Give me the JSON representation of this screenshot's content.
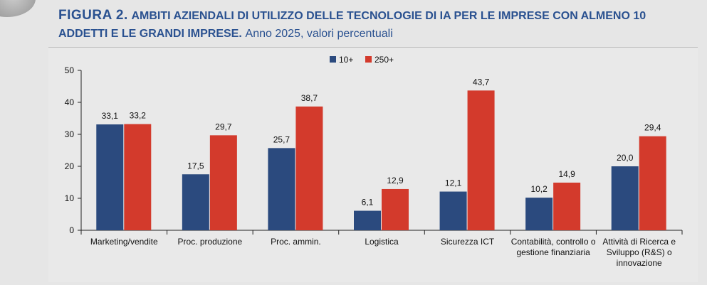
{
  "figure": {
    "label": "FIGURA 2.",
    "title": "AMBITI AZIENDALI DI UTILIZZO DELLE TECNOLOGIE DI IA PER LE IMPRESE CON ALMENO 10 ADDETTI E LE GRANDI IMPRESE.",
    "subtitle": "Anno 2025, valori percentuali"
  },
  "chart_data": {
    "type": "bar",
    "categories": [
      [
        "Marketing/vendite"
      ],
      [
        "Proc. produzione"
      ],
      [
        "Proc. ammin."
      ],
      [
        "Logistica"
      ],
      [
        "Sicurezza ICT"
      ],
      [
        "Contabilità, controllo o",
        "gestione finanziaria"
      ],
      [
        "Attività di Ricerca e",
        "Sviluppo (R&S) o",
        "innovazione"
      ]
    ],
    "series": [
      {
        "name": "10+",
        "values": [
          33.1,
          17.5,
          25.7,
          6.1,
          12.1,
          10.2,
          20.0
        ],
        "labels": [
          "33,1",
          "17,5",
          "25,7",
          "6,1",
          "12,1",
          "10,2",
          "20,0"
        ]
      },
      {
        "name": "250+",
        "values": [
          33.2,
          29.7,
          38.7,
          12.9,
          43.7,
          14.9,
          29.4
        ],
        "labels": [
          "33,2",
          "29,7",
          "38,7",
          "12,9",
          "43,7",
          "14,9",
          "29,4"
        ]
      }
    ],
    "colors": [
      "#2b4a7e",
      "#d33a2c"
    ],
    "ylim": [
      0,
      50
    ],
    "yticks": [
      0,
      10,
      20,
      30,
      40,
      50
    ],
    "legend_position": "top-center",
    "grid": false
  }
}
